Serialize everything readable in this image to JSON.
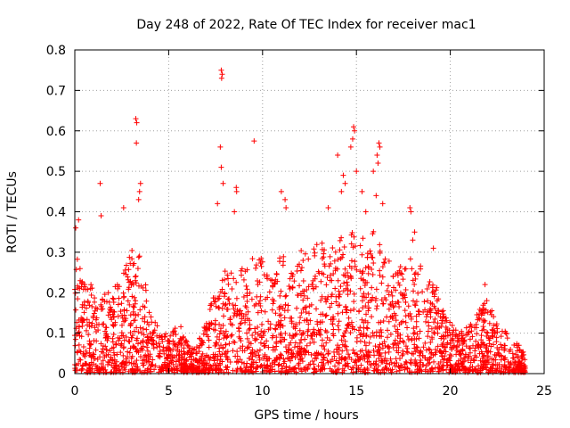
{
  "chart_data": {
    "type": "scatter",
    "title": "Day 248 of 2022, Rate Of TEC Index for receiver mac1",
    "xlabel": "GPS time / hours",
    "ylabel": "ROTI / TECUs",
    "xlim": [
      0,
      25
    ],
    "ylim": [
      0,
      0.8
    ],
    "x_ticks": [
      "0",
      "5",
      "10",
      "15",
      "20",
      "25"
    ],
    "y_ticks": [
      "0",
      "0.1",
      "0.2",
      "0.3",
      "0.4",
      "0.5",
      "0.6",
      "0.7",
      "0.8"
    ],
    "grid": true,
    "marker": "+",
    "color": "#ff0000",
    "x_coverage": [
      0,
      24
    ],
    "envelope": {
      "hours": [
        0,
        0.5,
        1,
        1.5,
        2,
        2.5,
        3,
        3.5,
        4,
        4.5,
        5,
        5.5,
        6,
        6.5,
        7,
        7.5,
        8,
        8.5,
        9,
        9.5,
        10,
        10.5,
        11,
        11.5,
        12,
        12.5,
        13,
        13.5,
        14,
        14.5,
        15,
        15.5,
        16,
        16.5,
        17,
        17.5,
        18,
        18.5,
        19,
        19.5,
        20,
        20.5,
        21,
        21.5,
        22,
        22.5,
        23,
        23.5,
        24
      ],
      "typical_max": [
        0.3,
        0.22,
        0.23,
        0.18,
        0.22,
        0.25,
        0.3,
        0.3,
        0.15,
        0.1,
        0.09,
        0.12,
        0.08,
        0.06,
        0.14,
        0.2,
        0.25,
        0.24,
        0.28,
        0.28,
        0.28,
        0.24,
        0.3,
        0.25,
        0.3,
        0.3,
        0.32,
        0.3,
        0.34,
        0.33,
        0.36,
        0.32,
        0.35,
        0.3,
        0.28,
        0.25,
        0.3,
        0.25,
        0.22,
        0.2,
        0.12,
        0.1,
        0.11,
        0.15,
        0.18,
        0.13,
        0.1,
        0.08,
        0.04
      ]
    },
    "peaks": [
      {
        "x": 0.05,
        "y": 0.36
      },
      {
        "x": 0.2,
        "y": 0.38
      },
      {
        "x": 1.35,
        "y": 0.47
      },
      {
        "x": 1.4,
        "y": 0.39
      },
      {
        "x": 2.6,
        "y": 0.41
      },
      {
        "x": 3.25,
        "y": 0.63
      },
      {
        "x": 3.3,
        "y": 0.62
      },
      {
        "x": 3.28,
        "y": 0.57
      },
      {
        "x": 3.5,
        "y": 0.47
      },
      {
        "x": 3.45,
        "y": 0.45
      },
      {
        "x": 3.4,
        "y": 0.43
      },
      {
        "x": 7.6,
        "y": 0.42
      },
      {
        "x": 7.8,
        "y": 0.75
      },
      {
        "x": 7.85,
        "y": 0.74
      },
      {
        "x": 7.82,
        "y": 0.73
      },
      {
        "x": 7.75,
        "y": 0.56
      },
      {
        "x": 7.8,
        "y": 0.51
      },
      {
        "x": 7.9,
        "y": 0.47
      },
      {
        "x": 8.6,
        "y": 0.46
      },
      {
        "x": 8.62,
        "y": 0.45
      },
      {
        "x": 8.5,
        "y": 0.4
      },
      {
        "x": 9.55,
        "y": 0.575
      },
      {
        "x": 11.0,
        "y": 0.45
      },
      {
        "x": 11.2,
        "y": 0.43
      },
      {
        "x": 11.25,
        "y": 0.41
      },
      {
        "x": 13.5,
        "y": 0.41
      },
      {
        "x": 14.0,
        "y": 0.54
      },
      {
        "x": 14.3,
        "y": 0.49
      },
      {
        "x": 14.4,
        "y": 0.47
      },
      {
        "x": 14.2,
        "y": 0.45
      },
      {
        "x": 14.85,
        "y": 0.61
      },
      {
        "x": 14.9,
        "y": 0.6
      },
      {
        "x": 14.8,
        "y": 0.58
      },
      {
        "x": 14.7,
        "y": 0.56
      },
      {
        "x": 15.0,
        "y": 0.5
      },
      {
        "x": 15.3,
        "y": 0.45
      },
      {
        "x": 15.5,
        "y": 0.4
      },
      {
        "x": 16.2,
        "y": 0.57
      },
      {
        "x": 16.25,
        "y": 0.56
      },
      {
        "x": 16.1,
        "y": 0.54
      },
      {
        "x": 16.15,
        "y": 0.52
      },
      {
        "x": 15.9,
        "y": 0.5
      },
      {
        "x": 16.05,
        "y": 0.44
      },
      {
        "x": 16.4,
        "y": 0.42
      },
      {
        "x": 17.85,
        "y": 0.41
      },
      {
        "x": 17.9,
        "y": 0.4
      },
      {
        "x": 18.1,
        "y": 0.35
      },
      {
        "x": 18.0,
        "y": 0.33
      },
      {
        "x": 19.1,
        "y": 0.31
      },
      {
        "x": 21.85,
        "y": 0.22
      },
      {
        "x": 19.3,
        "y": 0.18
      }
    ]
  }
}
